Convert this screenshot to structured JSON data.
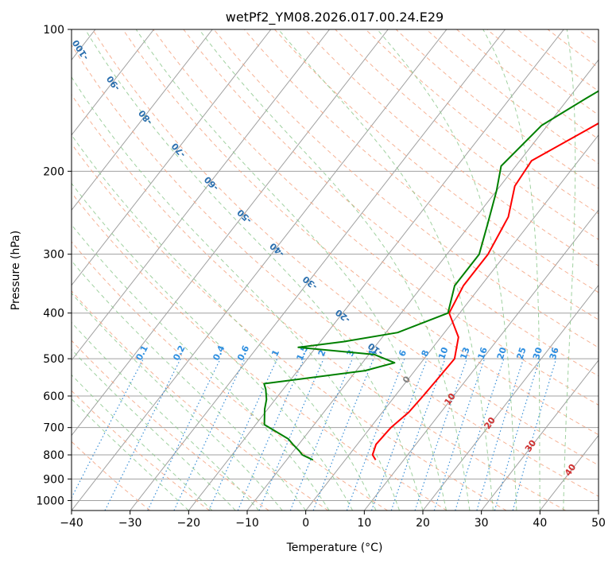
{
  "chart_data": {
    "type": "skew-t",
    "title": "wetPf2_YM08.2026.017.00.24.E29",
    "xlabel": "Temperature (°C)",
    "ylabel": "Pressure (hPa)",
    "xlim": [
      -40,
      50
    ],
    "ylim": [
      1050,
      100
    ],
    "x_ticks": [
      -40,
      -30,
      -20,
      -10,
      0,
      10,
      20,
      30,
      40,
      50
    ],
    "x_tick_labels": [
      "−40",
      "−30",
      "−20",
      "−10",
      "0",
      "10",
      "20",
      "30",
      "40",
      "50"
    ],
    "y_ticks": [
      100,
      200,
      300,
      400,
      500,
      600,
      700,
      800,
      900,
      1000
    ],
    "y_tick_labels": [
      "100",
      "200",
      "300",
      "400",
      "500",
      "600",
      "700",
      "800",
      "900",
      "1000"
    ],
    "grid": true,
    "series": [
      {
        "name": "Temperature",
        "color": "#ff0000",
        "points": [
          [
            5.2,
            820
          ],
          [
            4.0,
            800
          ],
          [
            3.2,
            760
          ],
          [
            3.5,
            700
          ],
          [
            4.5,
            650
          ],
          [
            4.8,
            600
          ],
          [
            5.0,
            550
          ],
          [
            5.2,
            500
          ],
          [
            3.0,
            450
          ],
          [
            -1.8,
            400
          ],
          [
            -3.0,
            350
          ],
          [
            -3.0,
            300
          ],
          [
            -4.5,
            250
          ],
          [
            -7.5,
            215
          ],
          [
            -8.0,
            190
          ],
          [
            -3.0,
            165
          ],
          [
            0.3,
            150
          ],
          [
            0.5,
            140
          ],
          [
            3.5,
            125
          ],
          [
            5.5,
            115
          ],
          [
            8.0,
            100
          ]
        ]
      },
      {
        "name": "Dewpoint",
        "color": "#008000",
        "points": [
          [
            -5.5,
            820
          ],
          [
            -8.0,
            800
          ],
          [
            -9.0,
            785
          ],
          [
            -11.0,
            760
          ],
          [
            -12.5,
            740
          ],
          [
            -18.5,
            690
          ],
          [
            -20.5,
            640
          ],
          [
            -21.5,
            610
          ],
          [
            -23.0,
            580
          ],
          [
            -24.0,
            565
          ],
          [
            -8.5,
            530
          ],
          [
            -4.5,
            510
          ],
          [
            -9.0,
            490
          ],
          [
            -23.0,
            473
          ],
          [
            -16.0,
            460
          ],
          [
            -8.0,
            440
          ],
          [
            -2.0,
            400
          ],
          [
            -4.5,
            350
          ],
          [
            -4.5,
            300
          ],
          [
            -7.0,
            260
          ],
          [
            -10.0,
            220
          ],
          [
            -12.5,
            195
          ],
          [
            -11.0,
            160
          ],
          [
            -7.0,
            140
          ],
          [
            -2.0,
            120
          ],
          [
            2.0,
            100
          ]
        ]
      }
    ],
    "dry_adiabat_labels": [
      "-100",
      "-90",
      "-80",
      "-70",
      "-60",
      "-50",
      "-40",
      "-30",
      "-20",
      "-10"
    ],
    "mixing_ratio_labels": [
      "0.1",
      "0.2",
      "0.4",
      "0.6",
      "1",
      "1.5",
      "2",
      "3",
      "4",
      "6",
      "8",
      "10",
      "13",
      "16",
      "20",
      "25",
      "30",
      "36"
    ],
    "moist_adiabat_labels": [
      "0",
      "10",
      "20",
      "30",
      "40"
    ],
    "colors": {
      "temperature": "#ff0000",
      "dewpoint": "#008000",
      "dry_adiabat": "#f4a582",
      "moist_adiabat": "#8fc98f",
      "mixing_ratio": "#3a8fd6",
      "isotherm": "#a0a0a0"
    }
  }
}
